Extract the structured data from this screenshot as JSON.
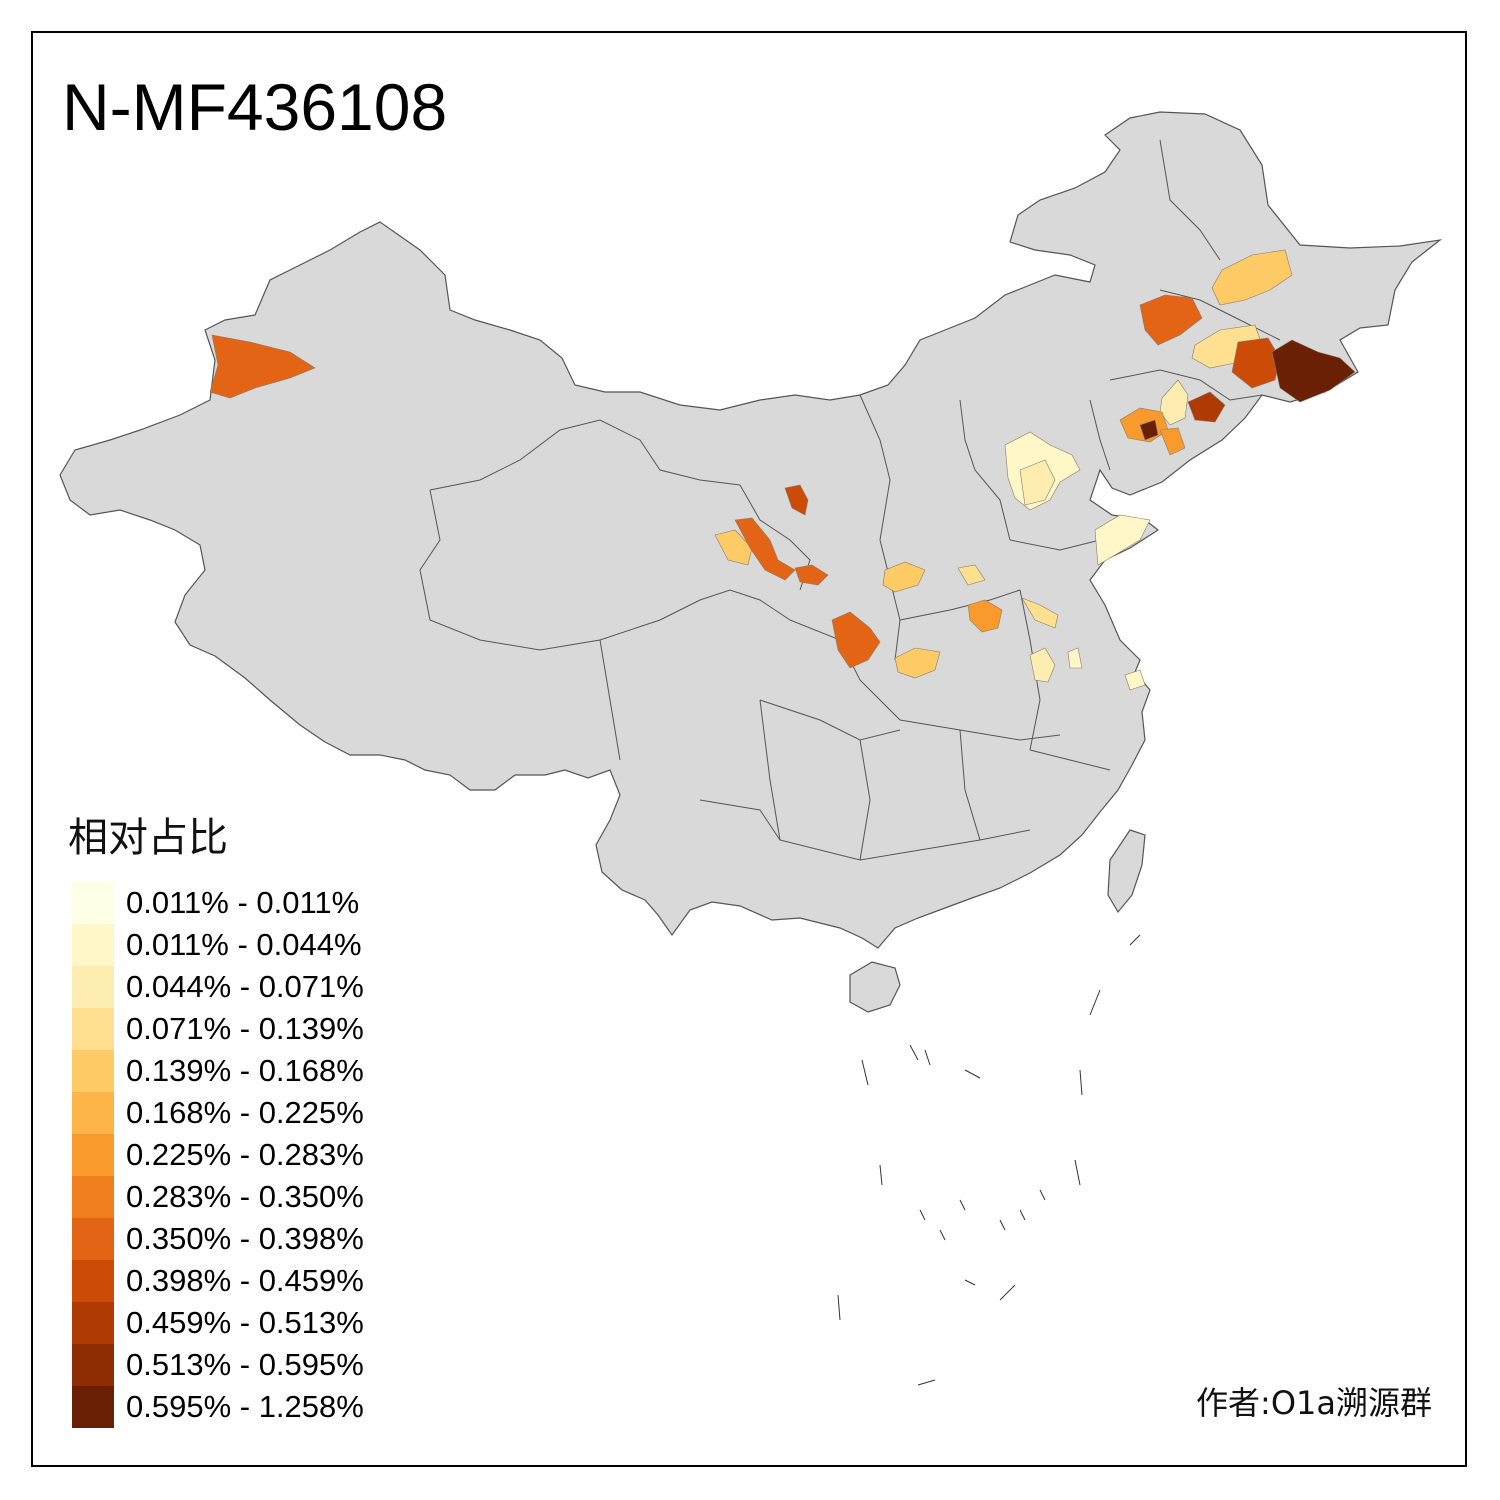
{
  "title": "N-MF436108",
  "legend": {
    "title": "相对占比",
    "items": [
      {
        "label": "0.011% - 0.011%",
        "color": "#FFFFE5"
      },
      {
        "label": "0.011% - 0.044%",
        "color": "#FFF7C8"
      },
      {
        "label": "0.044% - 0.071%",
        "color": "#FEEDB0"
      },
      {
        "label": "0.071% - 0.139%",
        "color": "#FEE090"
      },
      {
        "label": "0.139% - 0.168%",
        "color": "#FECB66"
      },
      {
        "label": "0.168% - 0.225%",
        "color": "#FDB449"
      },
      {
        "label": "0.225% - 0.283%",
        "color": "#FB9A2C"
      },
      {
        "label": "0.283% - 0.350%",
        "color": "#F07F1E"
      },
      {
        "label": "0.350% - 0.398%",
        "color": "#E36414"
      },
      {
        "label": "0.398% - 0.459%",
        "color": "#CC4C07"
      },
      {
        "label": "0.459% - 0.513%",
        "color": "#AF3A03"
      },
      {
        "label": "0.513% - 0.595%",
        "color": "#8E2D04"
      },
      {
        "label": "0.595% - 1.258%",
        "color": "#6A2005"
      }
    ]
  },
  "credit": "作者:O1a溯源群",
  "colors": {
    "land": "#D9D9D9",
    "border": "#555555"
  }
}
